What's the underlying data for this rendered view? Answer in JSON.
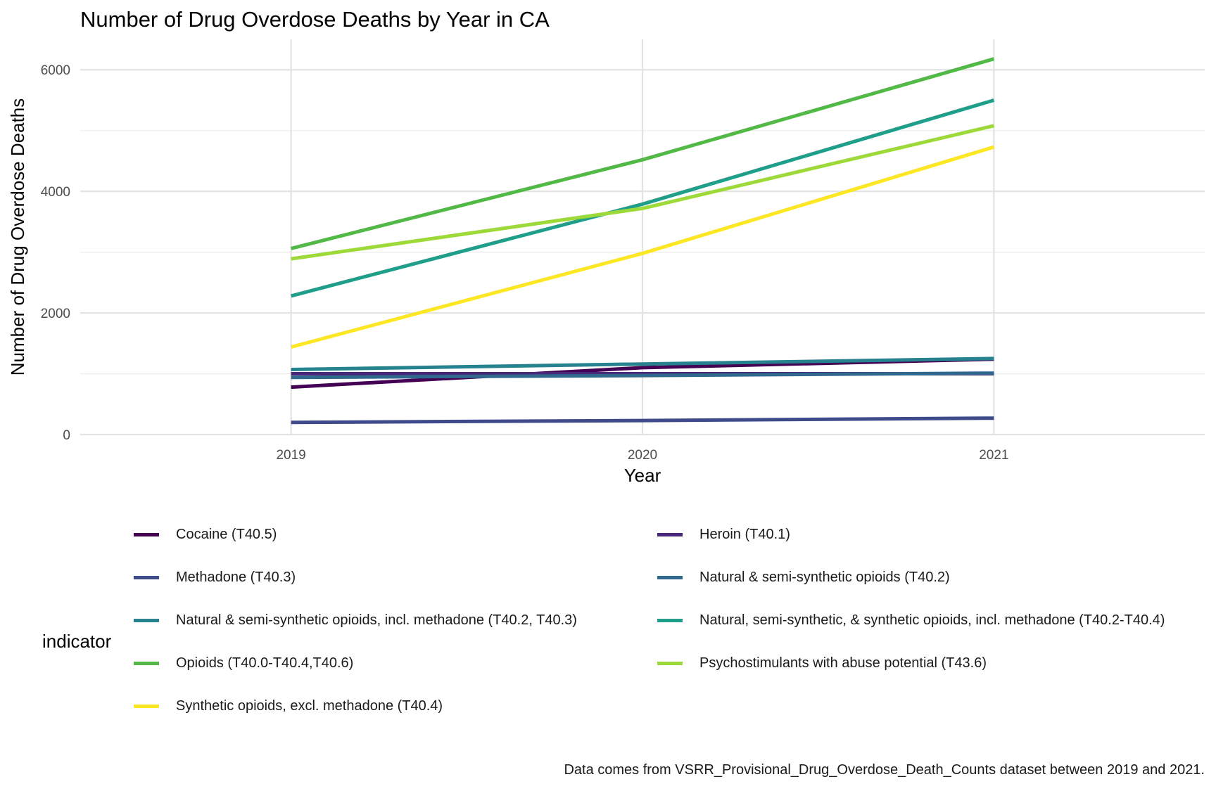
{
  "chart_data": {
    "type": "line",
    "title": "Number of Drug Overdose Deaths by Year in CA",
    "xlabel": "Year",
    "ylabel": "Number of Drug Overdose Deaths",
    "x": [
      2019,
      2020,
      2021
    ],
    "xlim": [
      2018.4,
      2021.6
    ],
    "ylim": [
      0,
      6500
    ],
    "x_ticks": [
      "2019",
      "2020",
      "2021"
    ],
    "y_ticks": [
      0,
      2000,
      4000,
      6000
    ],
    "grid": true,
    "legend_title": "indicator",
    "legend_position": "bottom",
    "caption": "Data comes from VSRR_Provisional_Drug_Overdose_Death_Counts dataset between 2019 and 2021.",
    "series": [
      {
        "name": "Cocaine (T40.5)",
        "color": "#440154",
        "values": [
          780,
          1100,
          1240
        ]
      },
      {
        "name": "Heroin (T40.1)",
        "color": "#482878",
        "values": [
          1000,
          1000,
          1000
        ]
      },
      {
        "name": "Methadone (T40.3)",
        "color": "#3E4A89",
        "values": [
          200,
          230,
          270
        ]
      },
      {
        "name": "Natural & semi-synthetic opioids (T40.2)",
        "color": "#31688E",
        "values": [
          940,
          970,
          1010
        ]
      },
      {
        "name": "Natural & semi-synthetic opioids, incl. methadone (T40.2, T40.3)",
        "color": "#26828E",
        "values": [
          1070,
          1160,
          1250
        ]
      },
      {
        "name": "Natural, semi-synthetic, & synthetic opioids, incl. methadone (T40.2-T40.4)",
        "color": "#1F9E89",
        "values": [
          2280,
          3790,
          5500
        ]
      },
      {
        "name": "Opioids (T40.0-T40.4,T40.6)",
        "color": "#52B947",
        "values": [
          3060,
          4520,
          6180
        ]
      },
      {
        "name": "Psychostimulants with abuse potential (T43.6)",
        "color": "#9ED93A",
        "values": [
          2890,
          3720,
          5080
        ]
      },
      {
        "name": "Synthetic opioids, excl. methadone (T40.4)",
        "color": "#FDE725",
        "values": [
          1440,
          2980,
          4730
        ]
      }
    ]
  }
}
